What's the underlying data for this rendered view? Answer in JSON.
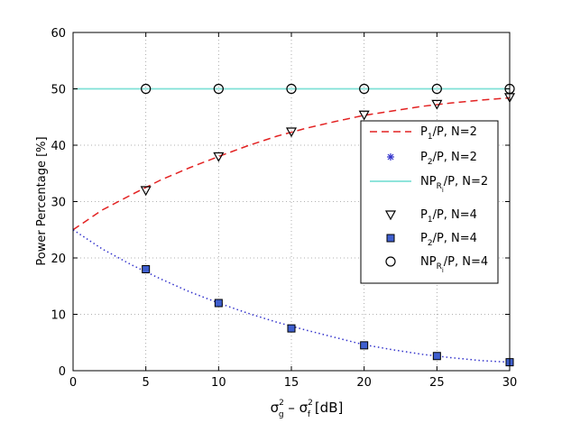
{
  "chart_data": {
    "type": "line",
    "xlabel": {
      "base1": "σ",
      "sup1": "2",
      "sub1": "g",
      "mid": " – σ",
      "sup2": "2",
      "sub2": "f",
      "unit": "  [dB]"
    },
    "ylabel": "Power Percentage [%]",
    "xlim": [
      0,
      30
    ],
    "ylim": [
      0,
      60
    ],
    "xticks": [
      0,
      5,
      10,
      15,
      20,
      25,
      30
    ],
    "yticks": [
      0,
      10,
      20,
      30,
      40,
      50,
      60
    ],
    "grid": true,
    "legend_position": "right-middle",
    "series": [
      {
        "id": "p1n2",
        "label": {
          "a": "P",
          "sub": "1",
          "b": "/P, N=2"
        },
        "style": "dashed",
        "color": "#e32222",
        "x": [
          0,
          2,
          4,
          6,
          8,
          10,
          12,
          14,
          16,
          18,
          20,
          22,
          24,
          26,
          28,
          30
        ],
        "y": [
          25.0,
          28.5,
          31.2,
          33.8,
          36.0,
          38.0,
          39.9,
          41.6,
          43.0,
          44.2,
          45.3,
          46.1,
          46.9,
          47.5,
          48.0,
          48.4
        ]
      },
      {
        "id": "p2n2",
        "label": {
          "a": "P",
          "sub": "2",
          "b": "/P, N=2"
        },
        "style": "dotted",
        "color": "#3333cc",
        "marker": "asterisk",
        "x": [
          0,
          2,
          4,
          6,
          8,
          10,
          12,
          14,
          16,
          18,
          20,
          22,
          24,
          26,
          28,
          30
        ],
        "y": [
          25.0,
          21.6,
          18.8,
          16.3,
          14.0,
          12.0,
          10.2,
          8.6,
          7.2,
          5.9,
          4.6,
          3.7,
          2.9,
          2.3,
          1.8,
          1.5
        ]
      },
      {
        "id": "npn2",
        "label": {
          "a": "NP",
          "sub": "R",
          "subsub": "i",
          "b": "/P, N=2"
        },
        "style": "solid",
        "color": "#7fe0d6",
        "x": [
          0,
          30
        ],
        "y": [
          50,
          50
        ]
      },
      {
        "id": "p1n4",
        "label": {
          "a": "P",
          "sub": "1",
          "b": "/P, N=4"
        },
        "style": "none",
        "marker": "triangle-down",
        "color": "#000000",
        "x": [
          5,
          10,
          15,
          20,
          25,
          30
        ],
        "y": [
          32.0,
          38.0,
          42.4,
          45.4,
          47.3,
          48.5
        ]
      },
      {
        "id": "p2n4",
        "label": {
          "a": "P",
          "sub": "2",
          "b": "/P, N=4"
        },
        "style": "none",
        "marker": "square",
        "color": "#3f5fcf",
        "x": [
          5,
          10,
          15,
          20,
          25,
          30
        ],
        "y": [
          18.0,
          12.0,
          7.5,
          4.5,
          2.6,
          1.5
        ]
      },
      {
        "id": "npn4",
        "label": {
          "a": "NP",
          "sub": "R",
          "subsub": "i",
          "b": "/P, N=4"
        },
        "style": "none",
        "marker": "circle",
        "color": "#000000",
        "x": [
          5,
          10,
          15,
          20,
          25,
          30
        ],
        "y": [
          50,
          50,
          50,
          50,
          50,
          50
        ]
      }
    ]
  }
}
